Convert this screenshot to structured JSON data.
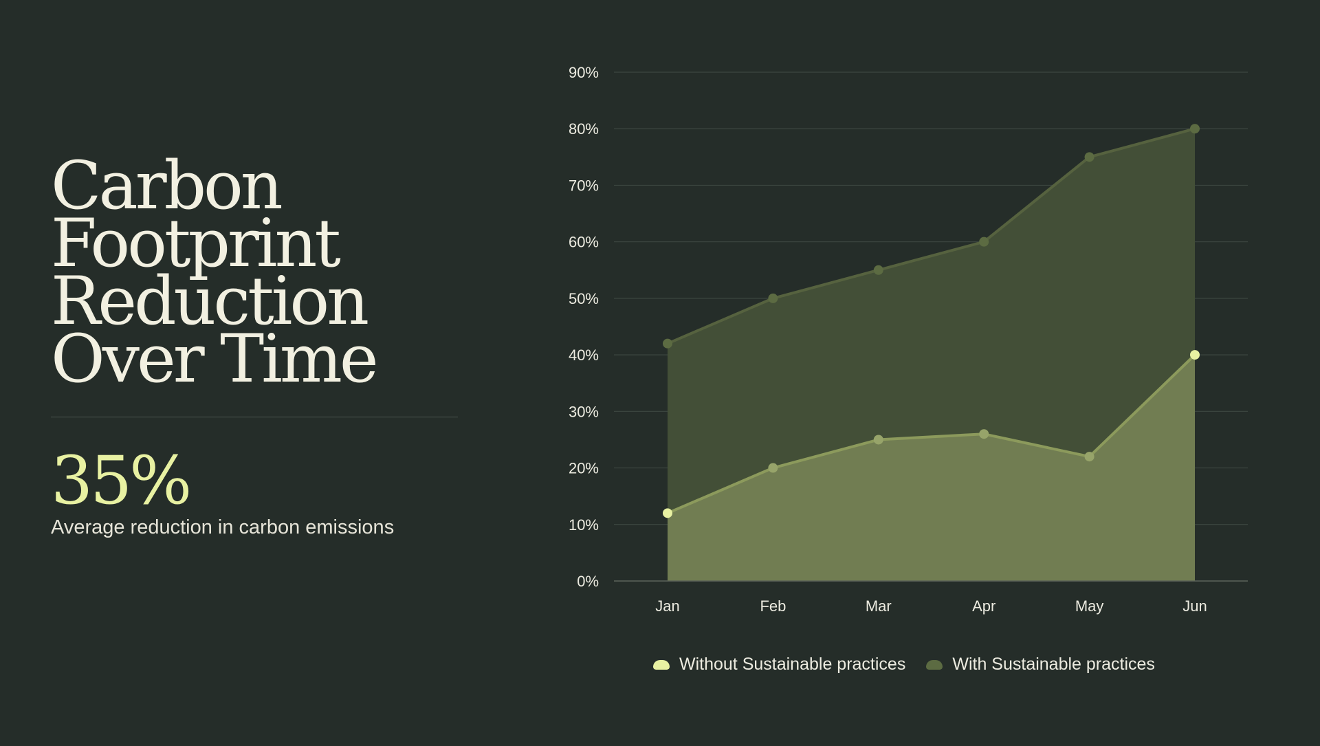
{
  "headline": {
    "line1": "Carbon",
    "line2": "Footprint",
    "line3": "Reduction",
    "line4": "Over Time"
  },
  "stat": {
    "value": "35%",
    "label": "Average reduction in carbon emissions"
  },
  "chart_data": {
    "type": "area",
    "categories": [
      "Jan",
      "Feb",
      "Mar",
      "Apr",
      "May",
      "Jun"
    ],
    "y_ticks": [
      "0%",
      "10%",
      "20%",
      "30%",
      "40%",
      "50%",
      "60%",
      "70%",
      "80%",
      "90%"
    ],
    "ylim": [
      0,
      90
    ],
    "grid": true,
    "legend_position": "bottom",
    "series": [
      {
        "name": "Without Sustainable practices",
        "values": [
          12,
          20,
          25,
          26,
          22,
          40
        ],
        "color": "#e8f1a2"
      },
      {
        "name": "With Sustainable practices",
        "values": [
          42,
          50,
          55,
          60,
          75,
          80
        ],
        "color": "#5c6b42"
      }
    ]
  },
  "colors": {
    "background": "#252d29",
    "accent": "#e8f1a2",
    "area_low": "#717d52",
    "area_high": "#434f37",
    "grid": "#3d4741"
  }
}
